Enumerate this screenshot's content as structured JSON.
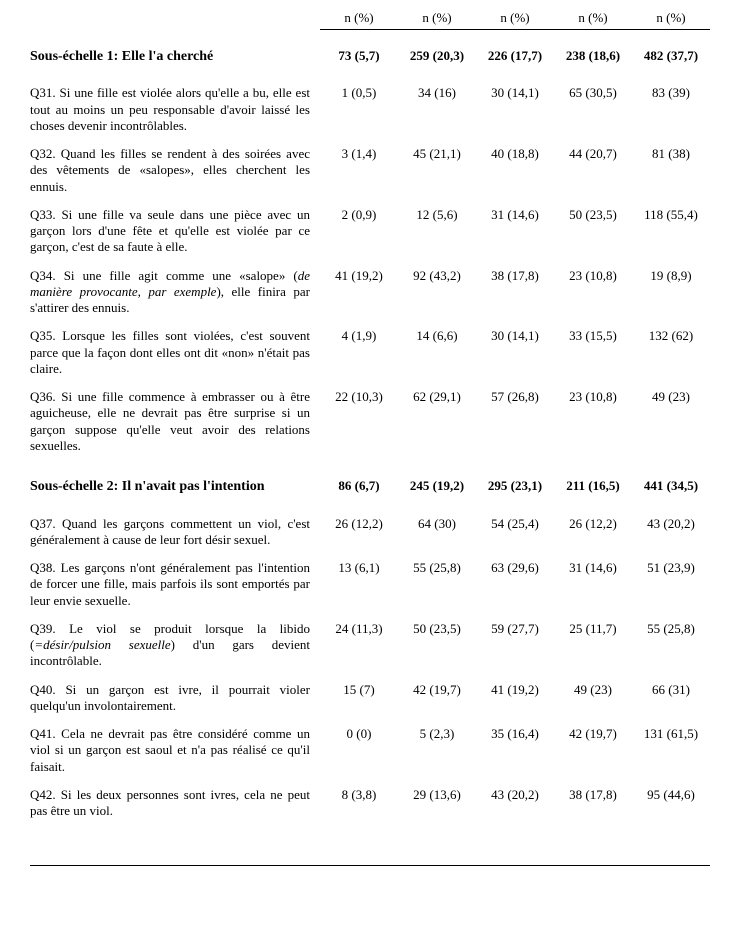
{
  "header_label": "n (%)",
  "subscales": [
    {
      "title": "Sous-échelle 1: Elle l'a cherché",
      "vals": [
        "73 (5,7)",
        "259 (20,3)",
        "226 (17,7)",
        "238 (18,6)",
        "482 (37,7)"
      ],
      "items": [
        {
          "code": "Q31.",
          "text": "Si une fille est violée alors qu'elle a bu, elle est tout au moins un peu responsable d'avoir laissé les choses devenir incontrôlables.",
          "vals": [
            "1 (0,5)",
            "34 (16)",
            "30 (14,1)",
            "65 (30,5)",
            "83 (39)"
          ]
        },
        {
          "code": "Q32.",
          "text": "Quand les filles se rendent à des soirées avec des vêtements de «salopes», elles cherchent les ennuis.",
          "vals": [
            "3 (1,4)",
            "45 (21,1)",
            "40 (18,8)",
            "44 (20,7)",
            "81 (38)"
          ]
        },
        {
          "code": "Q33.",
          "text": "Si une fille va seule dans une pièce avec un garçon lors d'une fête et qu'elle est violée par ce garçon, c'est de sa faute à elle.",
          "vals": [
            "2 (0,9)",
            "12 (5,6)",
            "31 (14,6)",
            "50 (23,5)",
            "118 (55,4)"
          ]
        },
        {
          "code": "Q34.",
          "text_html": "Si une fille agit comme une «salope» (<span class=\"ital\">de manière provocante, par exemple</span>), elle finira par s'attirer des ennuis.",
          "vals": [
            "41 (19,2)",
            "92 (43,2)",
            "38 (17,8)",
            "23 (10,8)",
            "19 (8,9)"
          ]
        },
        {
          "code": "Q35.",
          "text": "Lorsque les filles sont violées, c'est souvent parce que la façon dont elles ont dit «non» n'était pas claire.",
          "vals": [
            "4 (1,9)",
            "14 (6,6)",
            "30 (14,1)",
            "33 (15,5)",
            "132 (62)"
          ]
        },
        {
          "code": "Q36.",
          "text": "Si une fille commence à embrasser ou à être aguicheuse, elle ne devrait pas être surprise si un garçon suppose qu'elle veut avoir des relations sexuelles.",
          "vals": [
            "22 (10,3)",
            "62 (29,1)",
            "57 (26,8)",
            "23 (10,8)",
            "49 (23)"
          ]
        }
      ]
    },
    {
      "title": "Sous-échelle 2: Il n'avait pas l'intention",
      "vals": [
        "86 (6,7)",
        "245 (19,2)",
        "295 (23,1)",
        "211 (16,5)",
        "441 (34,5)"
      ],
      "items": [
        {
          "code": "Q37.",
          "text": "Quand les garçons commettent un viol, c'est généralement à cause de leur fort désir sexuel.",
          "vals": [
            "26 (12,2)",
            "64 (30)",
            "54 (25,4)",
            "26 (12,2)",
            "43 (20,2)"
          ]
        },
        {
          "code": "Q38.",
          "text": "Les garçons n'ont généralement pas l'intention de forcer une fille, mais parfois ils sont emportés par leur envie sexuelle.",
          "vals": [
            "13 (6,1)",
            "55 (25,8)",
            "63 (29,6)",
            "31 (14,6)",
            "51 (23,9)"
          ]
        },
        {
          "code": "Q39.",
          "text_html": "Le viol se produit lorsque la libido (<span class=\"ital\">=désir/pulsion sexuelle</span>) d'un gars devient incontrôlable.",
          "vals": [
            "24 (11,3)",
            "50 (23,5)",
            "59 (27,7)",
            "25 (11,7)",
            "55 (25,8)"
          ]
        },
        {
          "code": "Q40.",
          "text": "Si un garçon est ivre, il pourrait violer quelqu'un involontairement.",
          "vals": [
            "15 (7)",
            "42 (19,7)",
            "41 (19,2)",
            "49 (23)",
            "66 (31)"
          ]
        },
        {
          "code": "Q41.",
          "text": "Cela ne devrait pas être considéré comme un viol si un garçon est saoul et n'a pas réalisé ce qu'il faisait.",
          "vals": [
            "0 (0)",
            "5 (2,3)",
            "35 (16,4)",
            "42 (19,7)",
            "131 (61,5)"
          ]
        },
        {
          "code": "Q42.",
          "text": "Si les deux personnes sont ivres, cela ne peut pas être un viol.",
          "vals": [
            "8 (3,8)",
            "29 (13,6)",
            "43 (20,2)",
            "38 (17,8)",
            "95 (44,6)"
          ]
        }
      ]
    }
  ]
}
